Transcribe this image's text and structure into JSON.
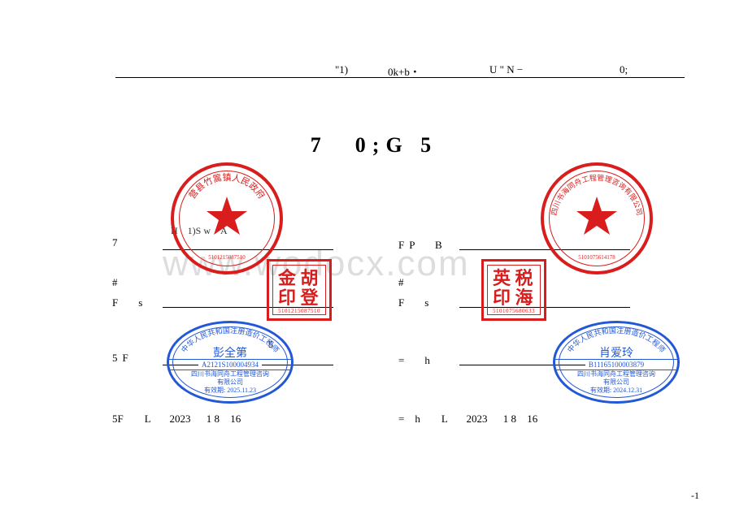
{
  "title_prefix": "\"1)",
  "title_mid": "0k+b・",
  "title_u": "U \" N −",
  "title_end": "0;",
  "heading": "7　0;G 5",
  "left": {
    "r1_label": "7",
    "r1_val": "H　1)S  w　A",
    "r2_label": "#",
    "r3_label": "F　s",
    "r4_label": "5F",
    "r4_val": "5",
    "date_label": "5F　　L",
    "date_year": "2023",
    "date_month": "1 8",
    "date_day": "16"
  },
  "right": {
    "r1_label": "FP　B",
    "r2_label": "#",
    "r3_label": "F　s",
    "r4_label": "=　h",
    "date_label": "=　h　　L",
    "date_year": "2023",
    "date_month": "1 8",
    "date_day": "16"
  },
  "stamps": {
    "round_left_text": "营县竹篙镇人民政府",
    "round_left_num": "5101215087510",
    "round_right_text": "四川书海同舟工程管理咨询有限公司",
    "round_right_num": "5101075614178",
    "square_left_chars": "胡金登印",
    "square_left_num": "5101215087510",
    "square_right_chars": "税英海印",
    "square_right_num": "5101075680633",
    "ellipse_left_arc": "中华人民共和国注册造价工程师",
    "ellipse_left_name": "彭全第",
    "ellipse_left_code": "A2121S100004934",
    "ellipse_left_org1": "四川书海同舟工程管理咨询",
    "ellipse_left_org2": "有限公司",
    "ellipse_left_valid": "有效期: 2025.11.23",
    "ellipse_right_arc": "中华人民共和国注册造价工程师",
    "ellipse_right_name": "肖爱玲",
    "ellipse_right_code": "B11165100003879",
    "ellipse_right_org1": "四川书海同舟工程管理咨询",
    "ellipse_right_org2": "有限公司",
    "ellipse_right_valid": "有效期: 2024.12.31"
  },
  "watermark": "www.wodocx.com",
  "page_num": "-1",
  "colors": {
    "red": "#d91c1c",
    "blue": "#2257d6",
    "watermark": "#dddddd"
  }
}
